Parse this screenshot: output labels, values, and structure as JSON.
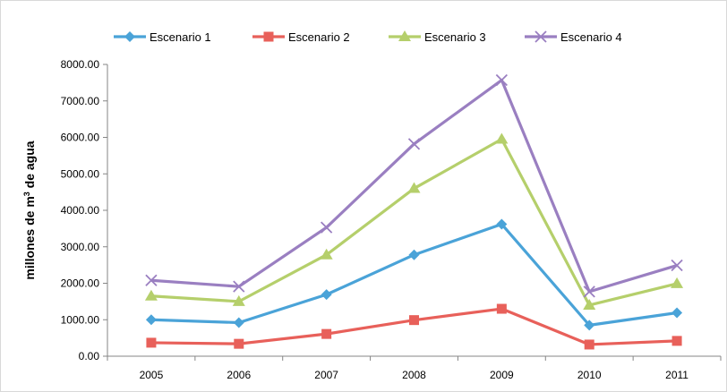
{
  "chart_data": {
    "type": "line",
    "title": "",
    "xlabel": "",
    "ylabel": {
      "prefix": "millones de m",
      "superscript": "3",
      "suffix": " de agua"
    },
    "categories": [
      "2005",
      "2006",
      "2007",
      "2008",
      "2009",
      "2010",
      "2011"
    ],
    "ylim": [
      0,
      8000
    ],
    "yticks": [
      "0.00",
      "1000.00",
      "2000.00",
      "3000.00",
      "4000.00",
      "5000.00",
      "6000.00",
      "7000.00",
      "8000.00"
    ],
    "grid": false,
    "legend_position": "top",
    "series": [
      {
        "name": "Escenario 1",
        "color": "#4aa3d8",
        "marker": "diamond",
        "values": [
          1000,
          920,
          1690,
          2780,
          3620,
          850,
          1190
        ]
      },
      {
        "name": "Escenario 2",
        "color": "#e8605a",
        "marker": "square",
        "values": [
          370,
          340,
          610,
          990,
          1300,
          320,
          420
        ]
      },
      {
        "name": "Escenario 3",
        "color": "#b5cf6b",
        "marker": "triangle",
        "values": [
          1650,
          1500,
          2780,
          4600,
          5950,
          1400,
          1990
        ]
      },
      {
        "name": "Escenario 4",
        "color": "#9a7fc1",
        "marker": "x",
        "values": [
          2080,
          1910,
          3530,
          5820,
          7570,
          1770,
          2490
        ]
      }
    ]
  }
}
